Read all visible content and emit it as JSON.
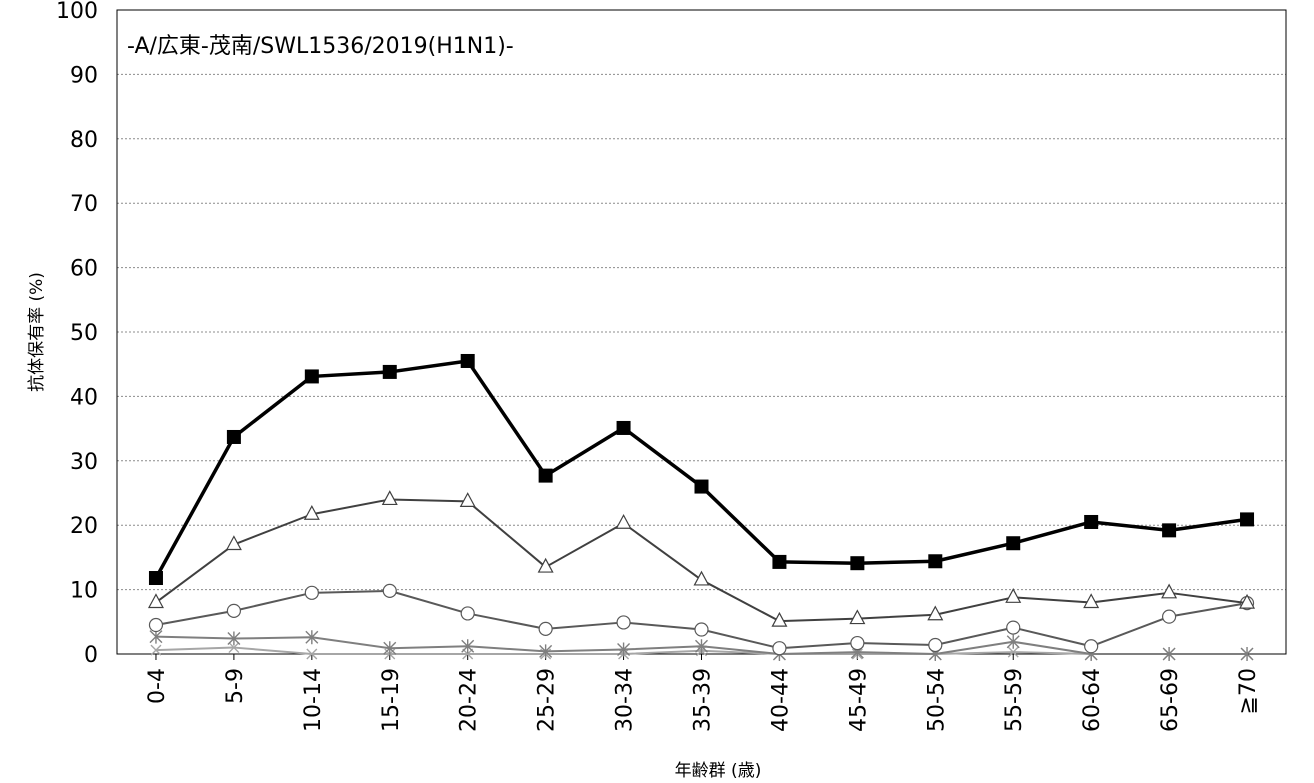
{
  "chart_data": {
    "type": "line",
    "title": "-A/広東-茂南/SWL1536/2019(H1N1)-",
    "xlabel": "年齢群 (歳)",
    "ylabel": "抗体保有率 (%)",
    "ylim": [
      0,
      100
    ],
    "yticks": [
      "0",
      "10",
      "20",
      "30",
      "40",
      "50",
      "60",
      "70",
      "80",
      "90",
      "100"
    ],
    "grid": true,
    "categories": [
      "0-4",
      "5-9",
      "10-14",
      "15-19",
      "20-24",
      "25-29",
      "30-34",
      "35-39",
      "40-44",
      "45-49",
      "50-54",
      "55-59",
      "60-64",
      "65-69",
      "≧70"
    ],
    "series": [
      {
        "marker": "square",
        "color": "#000000",
        "values": [
          11.8,
          33.7,
          43.1,
          43.8,
          45.5,
          27.7,
          35.1,
          26.0,
          14.3,
          14.1,
          14.4,
          17.2,
          20.5,
          19.2,
          20.9
        ]
      },
      {
        "marker": "triangle",
        "color": "#404040",
        "values": [
          8.0,
          17.0,
          21.7,
          24.0,
          23.7,
          13.5,
          20.3,
          11.5,
          5.1,
          5.5,
          6.1,
          8.8,
          8.0,
          9.5,
          7.9
        ]
      },
      {
        "marker": "circle",
        "color": "#595959",
        "values": [
          4.5,
          6.7,
          9.5,
          9.8,
          6.3,
          3.9,
          4.9,
          3.8,
          0.9,
          1.7,
          1.4,
          4.1,
          1.2,
          5.8,
          7.9
        ]
      },
      {
        "marker": "asterisk",
        "color": "#7f7f7f",
        "values": [
          2.7,
          2.4,
          2.6,
          0.9,
          1.2,
          0.4,
          0.7,
          1.2,
          0.0,
          0.3,
          0.0,
          1.9,
          0.0,
          0.0,
          0.0
        ]
      },
      {
        "marker": "cross",
        "color": "#a6a6a6",
        "values": [
          0.6,
          1.0,
          0.0,
          0.0,
          0.0,
          0.0,
          0.0,
          0.5,
          0.0,
          0.0,
          0.0,
          0.3,
          0.0,
          0.0,
          0.0
        ]
      }
    ]
  }
}
